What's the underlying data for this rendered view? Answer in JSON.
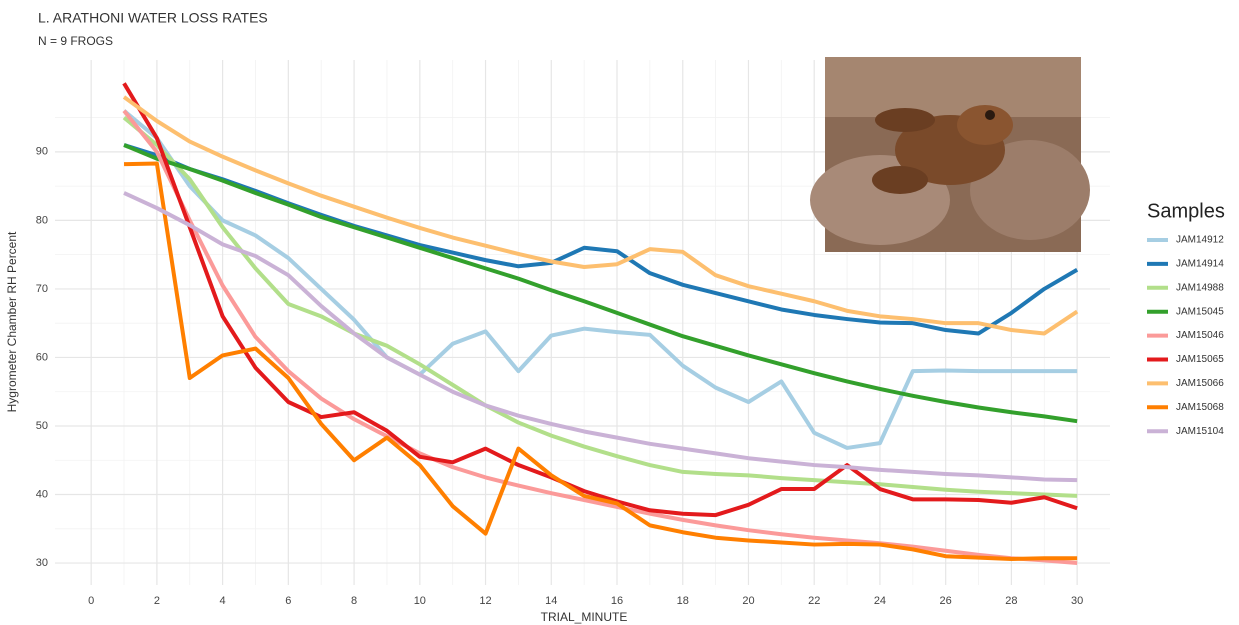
{
  "chart_data": {
    "type": "line",
    "title": "L. ARATHONI WATER LOSS RATES",
    "subtitle": "N = 9 FROGS",
    "x_label": "TRIAL_MINUTE",
    "y_label": "Hygrometer Chamber RH Percent",
    "legend_title": "Samples",
    "legend_position": "right",
    "grid": true,
    "xlim": [
      -1.1,
      31.0
    ],
    "ylim": [
      26.8,
      103.4
    ],
    "xticks": [
      0,
      2,
      4,
      6,
      8,
      10,
      12,
      14,
      16,
      18,
      20,
      22,
      24,
      26,
      28,
      30
    ],
    "yticks": [
      30,
      40,
      50,
      60,
      70,
      80,
      90
    ],
    "xminorticks": [
      1,
      3,
      5,
      7,
      9,
      11,
      13,
      15,
      17,
      19,
      21,
      23,
      25,
      27,
      29
    ],
    "yminorticks": [
      35,
      45,
      55,
      65,
      75,
      85,
      95
    ],
    "x": [
      1,
      2,
      3,
      4,
      5,
      6,
      7,
      8,
      9,
      10,
      11,
      12,
      13,
      14,
      15,
      16,
      17,
      18,
      19,
      20,
      21,
      22,
      23,
      24,
      25,
      26,
      27,
      28,
      29,
      30
    ],
    "series": [
      {
        "name": "JAM14912",
        "color": "#a6cee3",
        "values": [
          96,
          92,
          85,
          80,
          77.8,
          74.5,
          70,
          65.5,
          60,
          57.5,
          62,
          63.8,
          58,
          63.2,
          64.2,
          63.7,
          63.3,
          58.8,
          55.6,
          53.5,
          56.5,
          49,
          46.8,
          47.5,
          58,
          58.1,
          58,
          58,
          58,
          58
        ]
      },
      {
        "name": "JAM14914",
        "color": "#1f78b4",
        "values": [
          91,
          89.5,
          87.5,
          86,
          84.3,
          82.5,
          80.8,
          79.2,
          77.8,
          76.4,
          75.3,
          74.2,
          73.3,
          73.8,
          76,
          75.5,
          72.3,
          70.6,
          69.4,
          68.2,
          67,
          66.2,
          65.6,
          65.1,
          65,
          64,
          63.5,
          66.5,
          70,
          72.8
        ]
      },
      {
        "name": "JAM14988",
        "color": "#b2df8a",
        "values": [
          95,
          91,
          86,
          79,
          73,
          67.8,
          66,
          63.5,
          61.7,
          59,
          56,
          53,
          50.5,
          48.6,
          47,
          45.6,
          44.3,
          43.3,
          43,
          42.8,
          42.4,
          42.1,
          41.8,
          41.5,
          41.1,
          40.7,
          40.4,
          40.2,
          40,
          39.8
        ]
      },
      {
        "name": "JAM15045",
        "color": "#33a02c",
        "values": [
          91,
          89,
          87.5,
          85.8,
          84,
          82.3,
          80.5,
          79,
          77.5,
          76,
          74.5,
          73,
          71.5,
          69.8,
          68.2,
          66.5,
          64.8,
          63.1,
          61.7,
          60.3,
          59,
          57.7,
          56.5,
          55.4,
          54.4,
          53.5,
          52.7,
          52,
          51.4,
          50.7
        ]
      },
      {
        "name": "JAM15046",
        "color": "#fb9a99",
        "values": [
          96,
          90,
          80,
          70.5,
          63,
          58,
          54,
          51,
          48.5,
          46,
          44,
          42.5,
          41.3,
          40.2,
          39.2,
          38.2,
          37.2,
          36.3,
          35.5,
          34.8,
          34.2,
          33.7,
          33.3,
          32.9,
          32.4,
          31.8,
          31.2,
          30.7,
          30.4,
          30
        ]
      },
      {
        "name": "JAM15065",
        "color": "#e31a1c",
        "values": [
          100,
          92,
          79,
          66,
          58.5,
          53.5,
          51.3,
          52,
          49.3,
          45.5,
          44.7,
          46.7,
          44.3,
          42.5,
          40.5,
          39,
          37.7,
          37.2,
          37,
          38.5,
          40.8,
          40.8,
          44.3,
          40.8,
          39.3,
          39.3,
          39.2,
          38.8,
          39.6,
          38
        ]
      },
      {
        "name": "JAM15066",
        "color": "#fdbf6f",
        "values": [
          98,
          94.5,
          91.5,
          89.3,
          87.3,
          85.4,
          83.6,
          82,
          80.4,
          78.9,
          77.5,
          76.3,
          75.1,
          74,
          73.2,
          73.6,
          75.8,
          75.4,
          72,
          70.4,
          69.3,
          68.2,
          66.8,
          66,
          65.6,
          65,
          65,
          64,
          63.5,
          66.7
        ]
      },
      {
        "name": "JAM15068",
        "color": "#ff7f00",
        "values": [
          88.2,
          88.3,
          57,
          60.3,
          61.3,
          57,
          50.3,
          45,
          48.3,
          44.3,
          38.3,
          34.3,
          46.7,
          42.8,
          39.8,
          38.7,
          35.5,
          34.5,
          33.7,
          33.3,
          33,
          32.7,
          32.8,
          32.7,
          32,
          31,
          30.8,
          30.6,
          30.7,
          30.7
        ]
      },
      {
        "name": "JAM15104",
        "color": "#cab2d6",
        "values": [
          84,
          81.8,
          79.3,
          76.5,
          74.8,
          72,
          67.5,
          63.5,
          60,
          57.5,
          55,
          53,
          51.5,
          50.3,
          49.2,
          48.3,
          47.4,
          46.7,
          46,
          45.3,
          44.8,
          44.3,
          44,
          43.6,
          43.3,
          43,
          42.8,
          42.5,
          42.2,
          42.1
        ]
      }
    ]
  }
}
